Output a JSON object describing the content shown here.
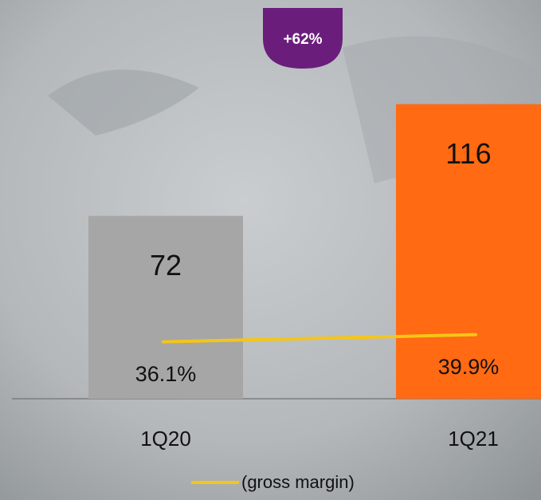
{
  "chart_data": {
    "type": "bar",
    "annotation": "+62%",
    "categories": [
      "1Q20",
      "1Q21"
    ],
    "series": [
      {
        "type": "bar",
        "colors": [
          "#a6a6a6",
          "#ff6a13"
        ],
        "values": [
          72,
          116
        ]
      },
      {
        "type": "line",
        "name": "(gross margin)",
        "color": "#f5c518",
        "axis": "y2",
        "values": [
          36.1,
          39.9
        ],
        "value_labels": [
          "36.1%",
          "39.9%"
        ]
      }
    ],
    "ylim": [
      0,
      157
    ],
    "y2lim": [
      6,
      217
    ]
  }
}
